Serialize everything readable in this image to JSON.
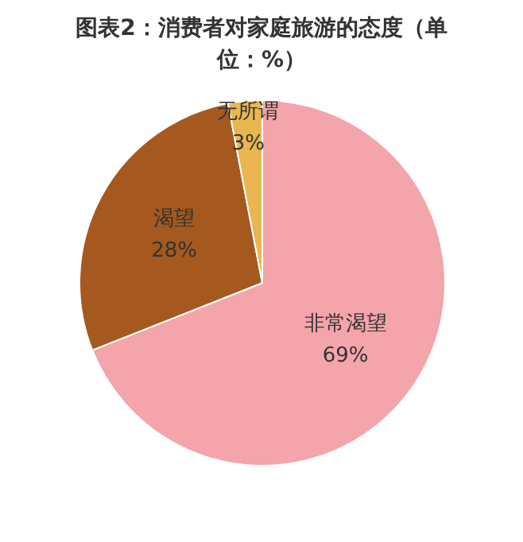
{
  "chart_data": {
    "type": "pie",
    "title": "图表2：消费者对家庭旅游的态度（单位：%）",
    "categories": [
      "非常渴望",
      "渴望",
      "无所谓"
    ],
    "values": [
      69,
      28,
      3
    ],
    "value_labels": [
      "69%",
      "28%",
      "3%"
    ],
    "colors": [
      "#f4a4ab",
      "#a5591f",
      "#e9b650"
    ],
    "legend": false
  }
}
